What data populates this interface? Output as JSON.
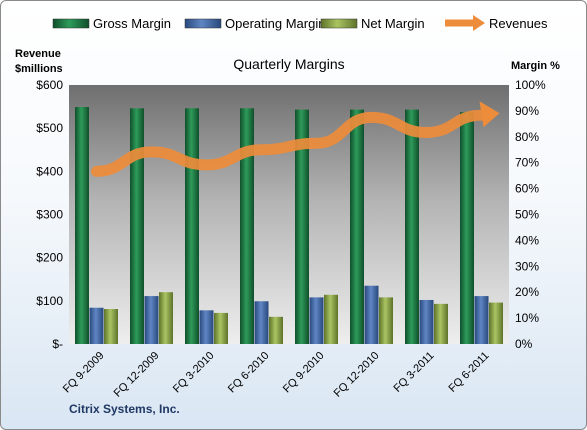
{
  "chart_data": {
    "type": "bar",
    "title": "Quarterly Margins",
    "categories": [
      "FQ 9-2009",
      "FQ 12-2009",
      "FQ 3-2010",
      "FQ 6-2010",
      "FQ 9-2010",
      "FQ 12-2010",
      "FQ 3-2011",
      "FQ 6-2011"
    ],
    "series": [
      {
        "name": "Gross Margin",
        "type": "bar",
        "axis": "right",
        "color": "#1e7b45",
        "values": [
          91.5,
          91.0,
          91.0,
          91.0,
          90.5,
          90.5,
          90.5,
          89.5
        ]
      },
      {
        "name": "Operating Margin",
        "type": "bar",
        "axis": "right",
        "color": "#3f67a6",
        "values": [
          14,
          18.5,
          13,
          16.5,
          18,
          22.5,
          17,
          18.5
        ]
      },
      {
        "name": "Net Margin",
        "type": "bar",
        "axis": "right",
        "color": "#8fa84a",
        "values": [
          13.5,
          20,
          12,
          10.5,
          19,
          18,
          15.5,
          16
        ]
      },
      {
        "name": "Revenues",
        "type": "line",
        "axis": "left",
        "color": "#ed8c3b",
        "values": [
          400,
          445,
          415,
          450,
          465,
          525,
          490,
          530
        ]
      }
    ],
    "ylabel_left": "Revenue $millions",
    "ylabel_right": "Margin %",
    "ylim_left": [
      0,
      600
    ],
    "ylim_right": [
      0,
      100
    ],
    "yticks_left": [
      "$-",
      "$100",
      "$200",
      "$300",
      "$400",
      "$500",
      "$600"
    ],
    "yticks_right": [
      "0%",
      "10%",
      "20%",
      "30%",
      "40%",
      "50%",
      "60%",
      "70%",
      "80%",
      "90%",
      "100%"
    ],
    "legend_position": "top",
    "grid": false
  },
  "footer": "Citrix Systems, Inc."
}
